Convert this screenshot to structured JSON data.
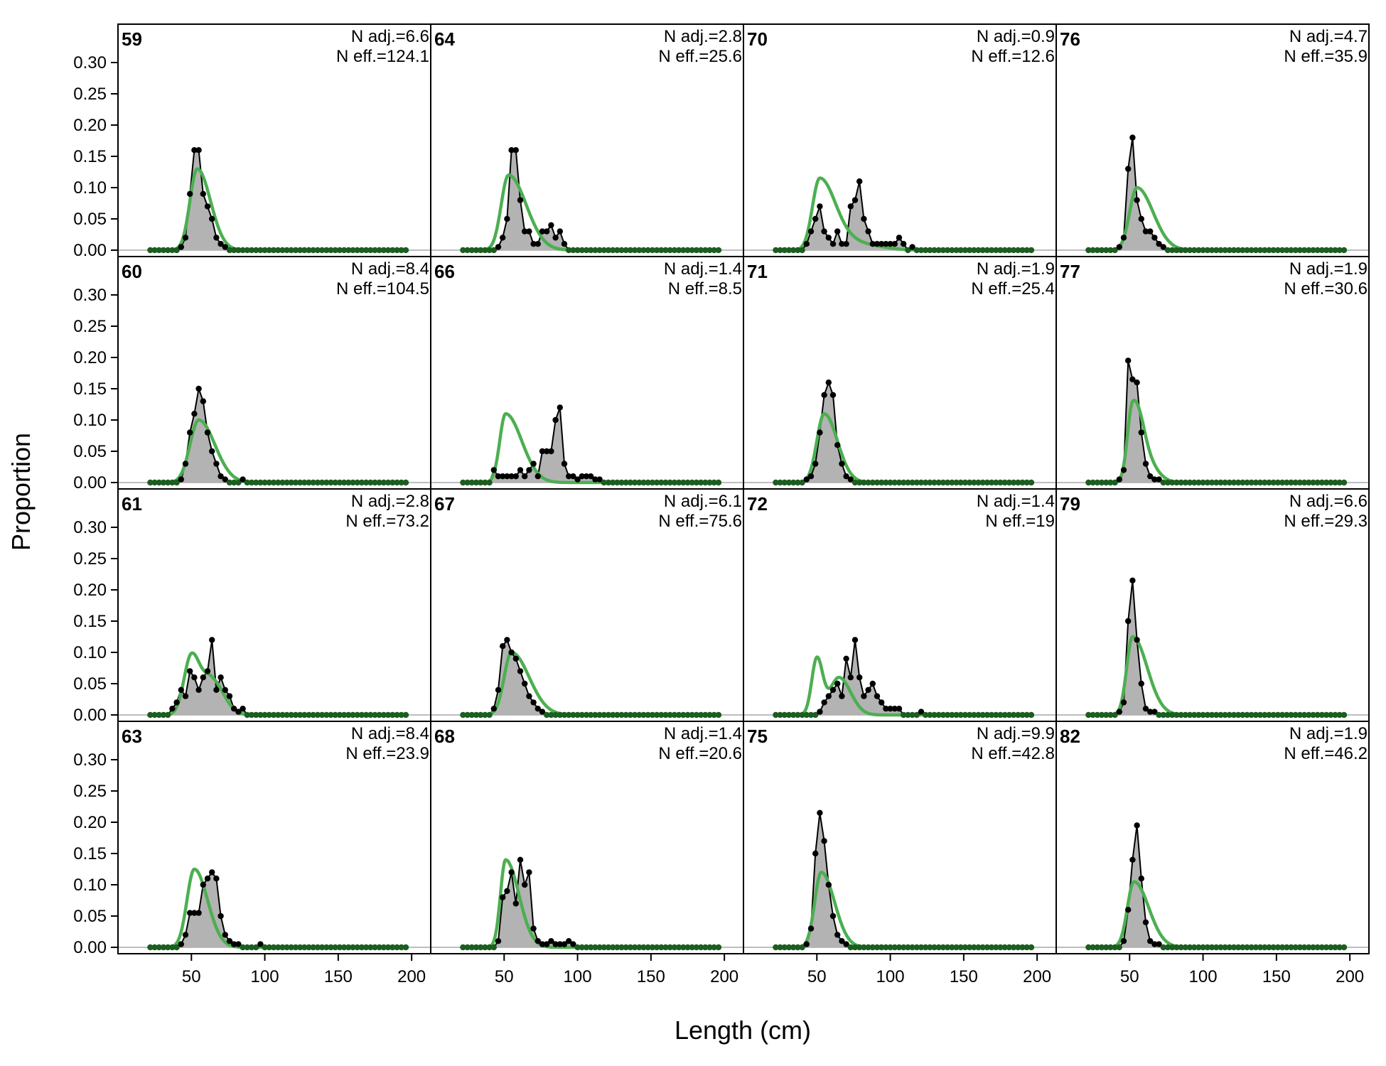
{
  "chart_data": {
    "type": "area",
    "xlabel": "Length (cm)",
    "ylabel": "Proportion",
    "xlim": [
      0,
      213
    ],
    "ylim": [
      0,
      0.35
    ],
    "x_ticks": [
      50,
      100,
      150,
      200
    ],
    "y_ticks": [
      0.0,
      0.05,
      0.1,
      0.15,
      0.2,
      0.25,
      0.3
    ],
    "y_tick_labels": [
      "0.00",
      "0.05",
      "0.10",
      "0.15",
      "0.20",
      "0.25",
      "0.30"
    ],
    "grid": false,
    "layout": {
      "rows": 4,
      "cols": 4
    },
    "colors": {
      "observed_fill": "#b3b3b3",
      "observed_line": "#000000",
      "expected": "#4caf50",
      "zero_line": "#bdbdbd"
    },
    "series_kinds": [
      "observed (points and shaded area)",
      "expected (green line)"
    ],
    "bin_range": [
      22,
      198
    ],
    "bin_width": 3,
    "panels": [
      {
        "id": "59",
        "n_adj": "N adj.=6.6",
        "n_eff": "N eff.=124.1",
        "obs": [
          [
            43,
            0.005
          ],
          [
            46,
            0.02
          ],
          [
            49,
            0.09
          ],
          [
            52,
            0.16
          ],
          [
            55,
            0.16
          ],
          [
            58,
            0.09
          ],
          [
            61,
            0.07
          ],
          [
            64,
            0.05
          ],
          [
            67,
            0.02
          ],
          [
            70,
            0.01
          ],
          [
            73,
            0.005
          ]
        ],
        "exp": {
          "parts": [
            {
              "mu": 54,
              "s1": 5,
              "s2": 9,
              "amp": 0.13
            }
          ]
        }
      },
      {
        "id": "64",
        "n_adj": "N adj.=2.8",
        "n_eff": "N eff.=25.6",
        "obs": [
          [
            46,
            0.005
          ],
          [
            49,
            0.02
          ],
          [
            52,
            0.05
          ],
          [
            55,
            0.16
          ],
          [
            58,
            0.16
          ],
          [
            61,
            0.08
          ],
          [
            64,
            0.03
          ],
          [
            67,
            0.03
          ],
          [
            70,
            0.01
          ],
          [
            73,
            0.01
          ],
          [
            76,
            0.03
          ],
          [
            79,
            0.03
          ],
          [
            82,
            0.04
          ],
          [
            85,
            0.02
          ],
          [
            88,
            0.03
          ],
          [
            91,
            0.01
          ]
        ],
        "exp": {
          "parts": [
            {
              "mu": 53,
              "s1": 5,
              "s2": 12,
              "amp": 0.12
            }
          ]
        }
      },
      {
        "id": "70",
        "n_adj": "N adj.=0.9",
        "n_eff": "N eff.=12.6",
        "obs": [
          [
            43,
            0.01
          ],
          [
            46,
            0.03
          ],
          [
            49,
            0.05
          ],
          [
            52,
            0.07
          ],
          [
            55,
            0.03
          ],
          [
            58,
            0.02
          ],
          [
            61,
            0.01
          ],
          [
            64,
            0.03
          ],
          [
            67,
            0.01
          ],
          [
            70,
            0.01
          ],
          [
            73,
            0.07
          ],
          [
            76,
            0.08
          ],
          [
            79,
            0.11
          ],
          [
            82,
            0.05
          ],
          [
            85,
            0.03
          ],
          [
            88,
            0.01
          ],
          [
            91,
            0.01
          ],
          [
            94,
            0.01
          ],
          [
            97,
            0.01
          ],
          [
            100,
            0.01
          ],
          [
            103,
            0.01
          ],
          [
            106,
            0.02
          ],
          [
            109,
            0.01
          ],
          [
            115,
            0.005
          ]
        ],
        "exp": {
          "parts": [
            {
              "mu": 52,
              "s1": 5,
              "s2": 11,
              "amp": 0.115
            },
            {
              "mu": 78,
              "s1": 10,
              "s2": 15,
              "amp": 0.01
            }
          ]
        }
      },
      {
        "id": "76",
        "n_adj": "N adj.=4.7",
        "n_eff": "N eff.=35.9",
        "obs": [
          [
            43,
            0.005
          ],
          [
            46,
            0.02
          ],
          [
            49,
            0.13
          ],
          [
            52,
            0.18
          ],
          [
            55,
            0.08
          ],
          [
            58,
            0.05
          ],
          [
            61,
            0.03
          ],
          [
            64,
            0.03
          ],
          [
            67,
            0.02
          ],
          [
            70,
            0.01
          ],
          [
            73,
            0.005
          ]
        ],
        "exp": {
          "parts": [
            {
              "mu": 55,
              "s1": 5,
              "s2": 11,
              "amp": 0.1
            }
          ]
        }
      },
      {
        "id": "60",
        "n_adj": "N adj.=8.4",
        "n_eff": "N eff.=104.5",
        "obs": [
          [
            43,
            0.005
          ],
          [
            46,
            0.03
          ],
          [
            49,
            0.08
          ],
          [
            52,
            0.11
          ],
          [
            55,
            0.15
          ],
          [
            58,
            0.13
          ],
          [
            61,
            0.08
          ],
          [
            64,
            0.05
          ],
          [
            67,
            0.03
          ],
          [
            70,
            0.01
          ],
          [
            73,
            0.005
          ],
          [
            85,
            0.005
          ]
        ],
        "exp": {
          "parts": [
            {
              "mu": 55,
              "s1": 6,
              "s2": 11,
              "amp": 0.1
            }
          ]
        }
      },
      {
        "id": "66",
        "n_adj": "N adj.=1.4",
        "n_eff": "N eff.=8.5",
        "obs": [
          [
            43,
            0.02
          ],
          [
            46,
            0.01
          ],
          [
            49,
            0.01
          ],
          [
            52,
            0.01
          ],
          [
            55,
            0.01
          ],
          [
            58,
            0.01
          ],
          [
            61,
            0.02
          ],
          [
            64,
            0.01
          ],
          [
            67,
            0.02
          ],
          [
            70,
            0.03
          ],
          [
            73,
            0.01
          ],
          [
            76,
            0.05
          ],
          [
            79,
            0.05
          ],
          [
            82,
            0.05
          ],
          [
            85,
            0.1
          ],
          [
            88,
            0.12
          ],
          [
            91,
            0.03
          ],
          [
            94,
            0.01
          ],
          [
            97,
            0.01
          ],
          [
            100,
            0.005
          ],
          [
            103,
            0.01
          ],
          [
            106,
            0.01
          ],
          [
            109,
            0.01
          ],
          [
            112,
            0.005
          ],
          [
            115,
            0.005
          ]
        ],
        "exp": {
          "parts": [
            {
              "mu": 51,
              "s1": 4,
              "s2": 11,
              "amp": 0.11
            }
          ]
        }
      },
      {
        "id": "71",
        "n_adj": "N adj.=1.9",
        "n_eff": "N eff.=25.4",
        "obs": [
          [
            43,
            0.005
          ],
          [
            46,
            0.01
          ],
          [
            49,
            0.03
          ],
          [
            52,
            0.08
          ],
          [
            55,
            0.14
          ],
          [
            58,
            0.16
          ],
          [
            61,
            0.14
          ],
          [
            64,
            0.06
          ],
          [
            67,
            0.03
          ],
          [
            70,
            0.01
          ],
          [
            73,
            0.005
          ]
        ],
        "exp": {
          "parts": [
            {
              "mu": 55,
              "s1": 5,
              "s2": 9,
              "amp": 0.11
            }
          ]
        }
      },
      {
        "id": "77",
        "n_adj": "N adj.=1.9",
        "n_eff": "N eff.=30.6",
        "obs": [
          [
            43,
            0.005
          ],
          [
            46,
            0.02
          ],
          [
            49,
            0.195
          ],
          [
            52,
            0.165
          ],
          [
            55,
            0.16
          ],
          [
            58,
            0.08
          ],
          [
            61,
            0.03
          ],
          [
            64,
            0.01
          ],
          [
            67,
            0.005
          ],
          [
            70,
            0.005
          ]
        ],
        "exp": {
          "parts": [
            {
              "mu": 52,
              "s1": 3.5,
              "s2": 6,
              "amp": 0.12
            },
            {
              "mu": 60,
              "s1": 5,
              "s2": 8,
              "amp": 0.035
            }
          ]
        }
      },
      {
        "id": "61",
        "n_adj": "N adj.=2.8",
        "n_eff": "N eff.=73.2",
        "obs": [
          [
            37,
            0.01
          ],
          [
            40,
            0.02
          ],
          [
            43,
            0.04
          ],
          [
            46,
            0.03
          ],
          [
            49,
            0.07
          ],
          [
            52,
            0.06
          ],
          [
            55,
            0.04
          ],
          [
            58,
            0.06
          ],
          [
            61,
            0.07
          ],
          [
            64,
            0.12
          ],
          [
            67,
            0.04
          ],
          [
            70,
            0.06
          ],
          [
            73,
            0.04
          ],
          [
            76,
            0.03
          ],
          [
            79,
            0.01
          ],
          [
            82,
            0.005
          ],
          [
            85,
            0.01
          ]
        ],
        "exp": {
          "parts": [
            {
              "mu": 50,
              "s1": 5,
              "s2": 6,
              "amp": 0.095
            },
            {
              "mu": 64,
              "s1": 6,
              "s2": 8,
              "amp": 0.055
            }
          ]
        }
      },
      {
        "id": "67",
        "n_adj": "N adj.=6.1",
        "n_eff": "N eff.=75.6",
        "obs": [
          [
            43,
            0.01
          ],
          [
            46,
            0.04
          ],
          [
            49,
            0.11
          ],
          [
            52,
            0.12
          ],
          [
            55,
            0.1
          ],
          [
            58,
            0.09
          ],
          [
            61,
            0.07
          ],
          [
            64,
            0.05
          ],
          [
            67,
            0.03
          ],
          [
            70,
            0.02
          ],
          [
            73,
            0.01
          ],
          [
            76,
            0.005
          ]
        ],
        "exp": {
          "parts": [
            {
              "mu": 55,
              "s1": 5,
              "s2": 12,
              "amp": 0.1
            }
          ]
        }
      },
      {
        "id": "72",
        "n_adj": "N adj.=1.4",
        "n_eff": "N eff.=19",
        "obs": [
          [
            52,
            0.005
          ],
          [
            55,
            0.02
          ],
          [
            58,
            0.03
          ],
          [
            61,
            0.04
          ],
          [
            64,
            0.05
          ],
          [
            67,
            0.03
          ],
          [
            70,
            0.09
          ],
          [
            73,
            0.06
          ],
          [
            76,
            0.12
          ],
          [
            79,
            0.06
          ],
          [
            82,
            0.03
          ],
          [
            85,
            0.04
          ],
          [
            88,
            0.05
          ],
          [
            91,
            0.03
          ],
          [
            94,
            0.02
          ],
          [
            97,
            0.01
          ],
          [
            100,
            0.01
          ],
          [
            103,
            0.01
          ],
          [
            106,
            0.01
          ],
          [
            121,
            0.005
          ]
        ],
        "exp": {
          "parts": [
            {
              "mu": 50,
              "s1": 3.5,
              "s2": 4,
              "amp": 0.09
            },
            {
              "mu": 65,
              "s1": 6,
              "s2": 8,
              "amp": 0.06
            }
          ]
        }
      },
      {
        "id": "79",
        "n_adj": "N adj.=6.6",
        "n_eff": "N eff.=29.3",
        "obs": [
          [
            43,
            0.005
          ],
          [
            46,
            0.02
          ],
          [
            49,
            0.15
          ],
          [
            52,
            0.215
          ],
          [
            55,
            0.12
          ],
          [
            58,
            0.05
          ],
          [
            61,
            0.01
          ],
          [
            64,
            0.005
          ],
          [
            67,
            0.005
          ]
        ],
        "exp": {
          "parts": [
            {
              "mu": 52,
              "s1": 4,
              "s2": 10,
              "amp": 0.125
            }
          ]
        }
      },
      {
        "id": "63",
        "n_adj": "N adj.=8.4",
        "n_eff": "N eff.=23.9",
        "obs": [
          [
            43,
            0.005
          ],
          [
            46,
            0.02
          ],
          [
            49,
            0.055
          ],
          [
            52,
            0.055
          ],
          [
            55,
            0.055
          ],
          [
            58,
            0.1
          ],
          [
            61,
            0.11
          ],
          [
            64,
            0.12
          ],
          [
            67,
            0.11
          ],
          [
            70,
            0.05
          ],
          [
            73,
            0.02
          ],
          [
            76,
            0.01
          ],
          [
            79,
            0.005
          ],
          [
            82,
            0.005
          ],
          [
            97,
            0.005
          ]
        ],
        "exp": {
          "parts": [
            {
              "mu": 52,
              "s1": 5,
              "s2": 9,
              "amp": 0.125
            }
          ]
        }
      },
      {
        "id": "68",
        "n_adj": "N adj.=1.4",
        "n_eff": "N eff.=20.6",
        "obs": [
          [
            46,
            0.01
          ],
          [
            49,
            0.08
          ],
          [
            52,
            0.09
          ],
          [
            55,
            0.12
          ],
          [
            58,
            0.07
          ],
          [
            61,
            0.14
          ],
          [
            64,
            0.1
          ],
          [
            67,
            0.12
          ],
          [
            70,
            0.03
          ],
          [
            73,
            0.01
          ],
          [
            76,
            0.005
          ],
          [
            79,
            0.005
          ],
          [
            82,
            0.01
          ],
          [
            85,
            0.005
          ],
          [
            88,
            0.005
          ],
          [
            91,
            0.005
          ],
          [
            94,
            0.01
          ],
          [
            97,
            0.005
          ]
        ],
        "exp": {
          "parts": [
            {
              "mu": 51,
              "s1": 3.5,
              "s2": 9,
              "amp": 0.14
            }
          ]
        }
      },
      {
        "id": "75",
        "n_adj": "N adj.=9.9",
        "n_eff": "N eff.=42.8",
        "obs": [
          [
            43,
            0.005
          ],
          [
            46,
            0.03
          ],
          [
            49,
            0.15
          ],
          [
            52,
            0.215
          ],
          [
            55,
            0.17
          ],
          [
            58,
            0.1
          ],
          [
            61,
            0.05
          ],
          [
            64,
            0.02
          ],
          [
            67,
            0.01
          ],
          [
            70,
            0.005
          ]
        ],
        "exp": {
          "parts": [
            {
              "mu": 53,
              "s1": 4.5,
              "s2": 9,
              "amp": 0.12
            }
          ]
        }
      },
      {
        "id": "82",
        "n_adj": "N adj.=1.9",
        "n_eff": "N eff.=46.2",
        "obs": [
          [
            46,
            0.01
          ],
          [
            49,
            0.06
          ],
          [
            52,
            0.14
          ],
          [
            55,
            0.195
          ],
          [
            58,
            0.11
          ],
          [
            61,
            0.04
          ],
          [
            64,
            0.01
          ],
          [
            67,
            0.005
          ],
          [
            70,
            0.005
          ]
        ],
        "exp": {
          "parts": [
            {
              "mu": 53,
              "s1": 4.5,
              "s2": 10,
              "amp": 0.105
            }
          ]
        }
      }
    ]
  }
}
